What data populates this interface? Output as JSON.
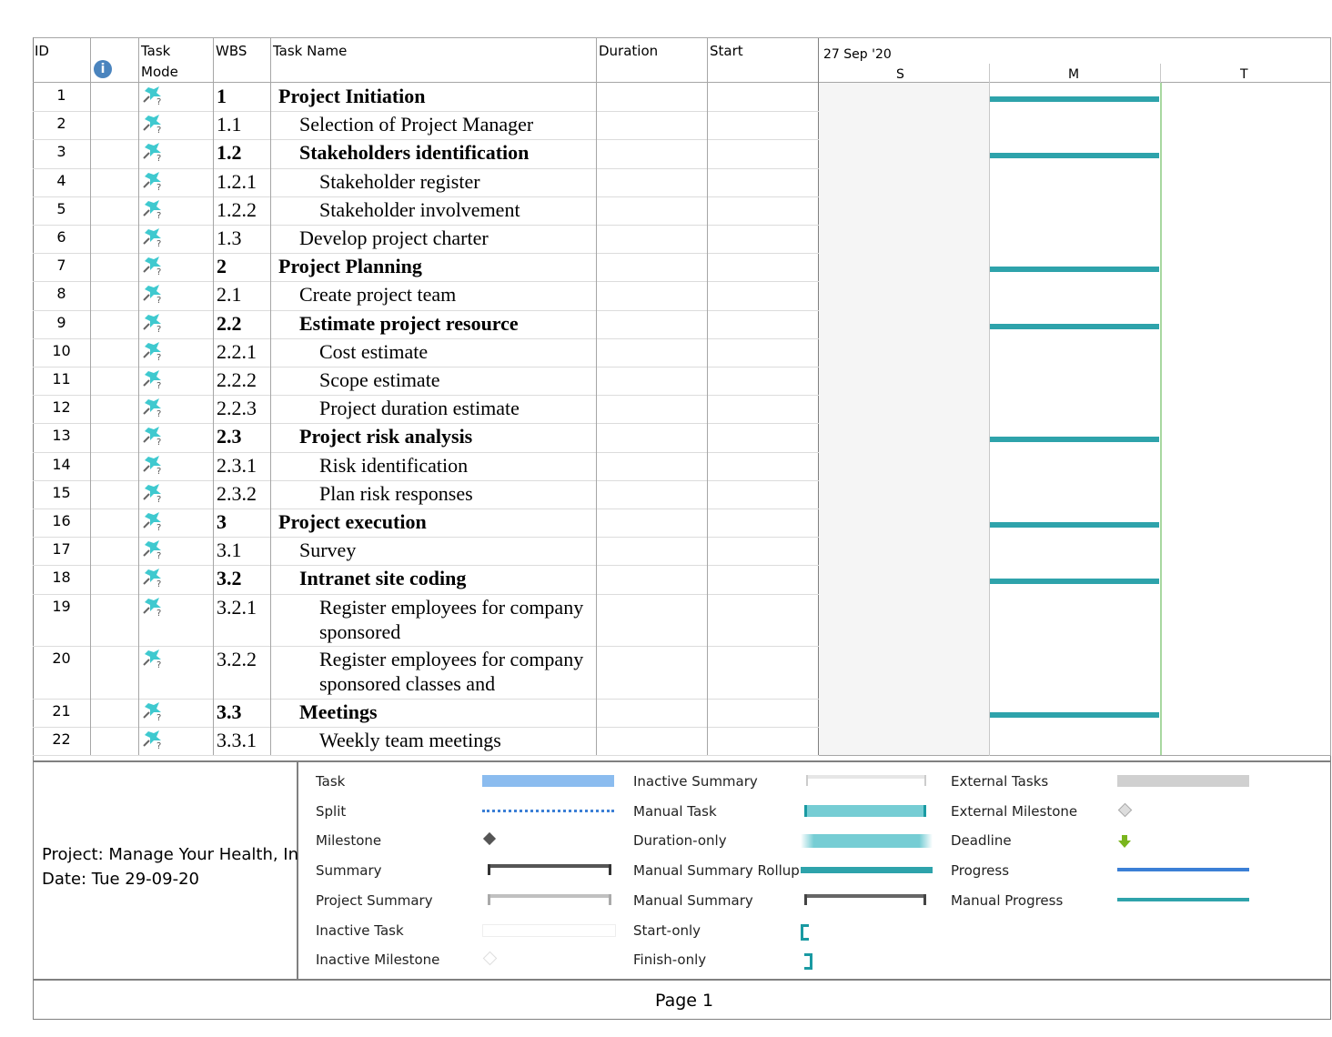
{
  "columns": {
    "id": "ID",
    "task_mode": "Task Mode",
    "wbs": "WBS",
    "task_name": "Task Name",
    "duration": "Duration",
    "start": "Start"
  },
  "timescale": {
    "week": "27 Sep '20",
    "days": [
      "S",
      "M",
      "T"
    ]
  },
  "tasks": [
    {
      "id": "1",
      "wbs": "1",
      "name": "Project Initiation",
      "level": 1,
      "summary": true
    },
    {
      "id": "2",
      "wbs": "1.1",
      "name": "Selection of Project Manager",
      "level": 2,
      "summary": false
    },
    {
      "id": "3",
      "wbs": "1.2",
      "name": "Stakeholders identification",
      "level": 2,
      "summary": true
    },
    {
      "id": "4",
      "wbs": "1.2.1",
      "name": "Stakeholder register",
      "level": 3,
      "summary": false
    },
    {
      "id": "5",
      "wbs": "1.2.2",
      "name": "Stakeholder involvement",
      "level": 3,
      "summary": false
    },
    {
      "id": "6",
      "wbs": "1.3",
      "name": "Develop project charter",
      "level": 2,
      "summary": false
    },
    {
      "id": "7",
      "wbs": "2",
      "name": "Project Planning",
      "level": 1,
      "summary": true
    },
    {
      "id": "8",
      "wbs": "2.1",
      "name": "Create project team",
      "level": 2,
      "summary": false
    },
    {
      "id": "9",
      "wbs": "2.2",
      "name": "Estimate project resource",
      "level": 2,
      "summary": true
    },
    {
      "id": "10",
      "wbs": "2.2.1",
      "name": "Cost estimate",
      "level": 3,
      "summary": false
    },
    {
      "id": "11",
      "wbs": "2.2.2",
      "name": "Scope estimate",
      "level": 3,
      "summary": false
    },
    {
      "id": "12",
      "wbs": "2.2.3",
      "name": "Project duration estimate",
      "level": 3,
      "summary": false
    },
    {
      "id": "13",
      "wbs": "2.3",
      "name": "Project risk analysis",
      "level": 2,
      "summary": true
    },
    {
      "id": "14",
      "wbs": "2.3.1",
      "name": "Risk identification",
      "level": 3,
      "summary": false
    },
    {
      "id": "15",
      "wbs": "2.3.2",
      "name": "Plan risk responses",
      "level": 3,
      "summary": false
    },
    {
      "id": "16",
      "wbs": "3",
      "name": "Project execution",
      "level": 1,
      "summary": true
    },
    {
      "id": "17",
      "wbs": "3.1",
      "name": "Survey",
      "level": 2,
      "summary": false
    },
    {
      "id": "18",
      "wbs": "3.2",
      "name": "Intranet site coding",
      "level": 2,
      "summary": true
    },
    {
      "id": "19",
      "wbs": "3.2.1",
      "name": "Register employees for company sponsored",
      "level": 3,
      "summary": false,
      "tall": true
    },
    {
      "id": "20",
      "wbs": "3.2.2",
      "name": "Register employees for company sponsored classes and",
      "level": 3,
      "summary": false,
      "tall": true
    },
    {
      "id": "21",
      "wbs": "3.3",
      "name": "Meetings",
      "level": 2,
      "summary": true
    },
    {
      "id": "22",
      "wbs": "3.3.1",
      "name": "Weekly team meetings",
      "level": 3,
      "summary": false
    }
  ],
  "footer": {
    "project": "Project: Manage Your Health, In",
    "date": "Date: Tue 29-09-20",
    "page": "Page 1"
  },
  "legend": [
    {
      "label": "Task",
      "symbol": "task"
    },
    {
      "label": "Split",
      "symbol": "split"
    },
    {
      "label": "Milestone",
      "symbol": "milestone"
    },
    {
      "label": "Summary",
      "symbol": "summary"
    },
    {
      "label": "Project Summary",
      "symbol": "project-summary"
    },
    {
      "label": "Inactive Task",
      "symbol": "inactive-task"
    },
    {
      "label": "Inactive Milestone",
      "symbol": "inactive-milestone"
    },
    {
      "label": "Inactive Summary",
      "symbol": "inactive-summary"
    },
    {
      "label": "Manual Task",
      "symbol": "manual-task"
    },
    {
      "label": "Duration-only",
      "symbol": "duration-only"
    },
    {
      "label": "Manual Summary Rollup",
      "symbol": "manual-summary-rollup"
    },
    {
      "label": "Manual Summary",
      "symbol": "manual-summary"
    },
    {
      "label": "Start-only",
      "symbol": "start-only"
    },
    {
      "label": "Finish-only",
      "symbol": "finish-only"
    },
    {
      "label": "External Tasks",
      "symbol": "external-tasks"
    },
    {
      "label": "External Milestone",
      "symbol": "external-milestone"
    },
    {
      "label": "Deadline",
      "symbol": "deadline"
    },
    {
      "label": "Progress",
      "symbol": "progress"
    },
    {
      "label": "Manual Progress",
      "symbol": "manual-progress"
    }
  ],
  "colors": {
    "summary_bar": "#2ea3ab",
    "task": "#8bbcef",
    "manual_task": "#76cdd4",
    "progress": "#3b7fd6",
    "deadline": "#7ab51d",
    "nonworking": "#f5f5f5"
  }
}
